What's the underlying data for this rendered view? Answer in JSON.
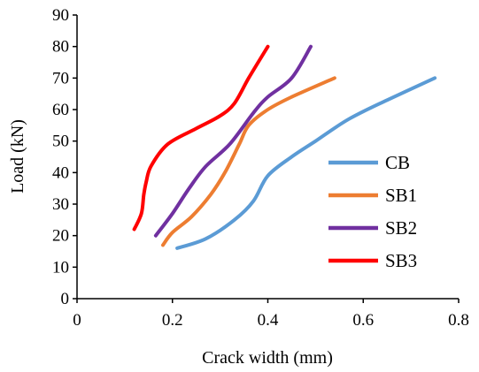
{
  "chart_data": {
    "type": "line",
    "title": "",
    "xlabel": "Crack width (mm)",
    "ylabel": "Load (kN)",
    "xlim": [
      0,
      0.8
    ],
    "ylim": [
      0,
      90
    ],
    "x_ticks": [
      "0",
      "0.2",
      "0.4",
      "0.6",
      "0.8"
    ],
    "y_ticks": [
      "0",
      "10",
      "20",
      "30",
      "40",
      "50",
      "60",
      "70",
      "80",
      "90"
    ],
    "grid": false,
    "legend_position": "right",
    "series": [
      {
        "name": "CB",
        "color": "#5B9BD5",
        "points": [
          [
            0.21,
            16
          ],
          [
            0.27,
            19
          ],
          [
            0.33,
            25
          ],
          [
            0.37,
            31
          ],
          [
            0.4,
            39
          ],
          [
            0.45,
            45
          ],
          [
            0.5,
            50
          ],
          [
            0.57,
            57
          ],
          [
            0.65,
            63
          ],
          [
            0.75,
            70
          ]
        ]
      },
      {
        "name": "SB1",
        "color": "#ED7D31",
        "points": [
          [
            0.18,
            17
          ],
          [
            0.2,
            21
          ],
          [
            0.24,
            26
          ],
          [
            0.28,
            33
          ],
          [
            0.31,
            40
          ],
          [
            0.34,
            49
          ],
          [
            0.36,
            55
          ],
          [
            0.4,
            60
          ],
          [
            0.45,
            64
          ],
          [
            0.54,
            70
          ]
        ]
      },
      {
        "name": "SB2",
        "color": "#7030A0",
        "points": [
          [
            0.165,
            20
          ],
          [
            0.2,
            27
          ],
          [
            0.235,
            35
          ],
          [
            0.27,
            42
          ],
          [
            0.32,
            49
          ],
          [
            0.37,
            59
          ],
          [
            0.4,
            64
          ],
          [
            0.45,
            70
          ],
          [
            0.49,
            80
          ]
        ]
      },
      {
        "name": "SB3",
        "color": "#FF0000",
        "points": [
          [
            0.12,
            22
          ],
          [
            0.135,
            27
          ],
          [
            0.14,
            33
          ],
          [
            0.145,
            37
          ],
          [
            0.155,
            42
          ],
          [
            0.19,
            49
          ],
          [
            0.25,
            54
          ],
          [
            0.3,
            58
          ],
          [
            0.33,
            62
          ],
          [
            0.36,
            70
          ],
          [
            0.4,
            80
          ]
        ]
      }
    ]
  }
}
